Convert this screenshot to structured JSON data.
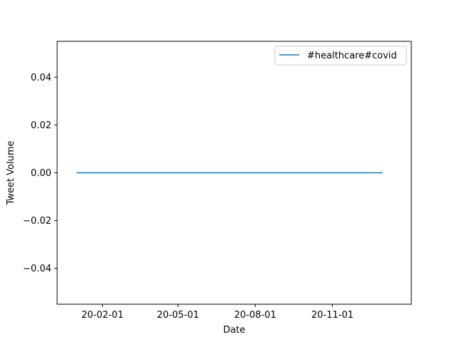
{
  "chart_data": {
    "type": "line",
    "title": "",
    "xlabel": "Date",
    "ylabel": "Tweet Volume",
    "x_ticks": [
      "20-02-01",
      "20-05-01",
      "20-08-01",
      "20-11-01"
    ],
    "y_ticks": [
      "0.04",
      "0.02",
      "0.00",
      "−0.02",
      "−0.04"
    ],
    "ylim": [
      -0.055,
      0.055
    ],
    "xlim": [
      "2019-12-09",
      "2021-02-03"
    ],
    "grid": false,
    "legend_position": "top-right",
    "series": [
      {
        "name": "#healthcare#covid",
        "color": "#1f77b4",
        "x": [
          "2020-01-01",
          "2020-12-31"
        ],
        "y": [
          0,
          0
        ]
      }
    ]
  }
}
